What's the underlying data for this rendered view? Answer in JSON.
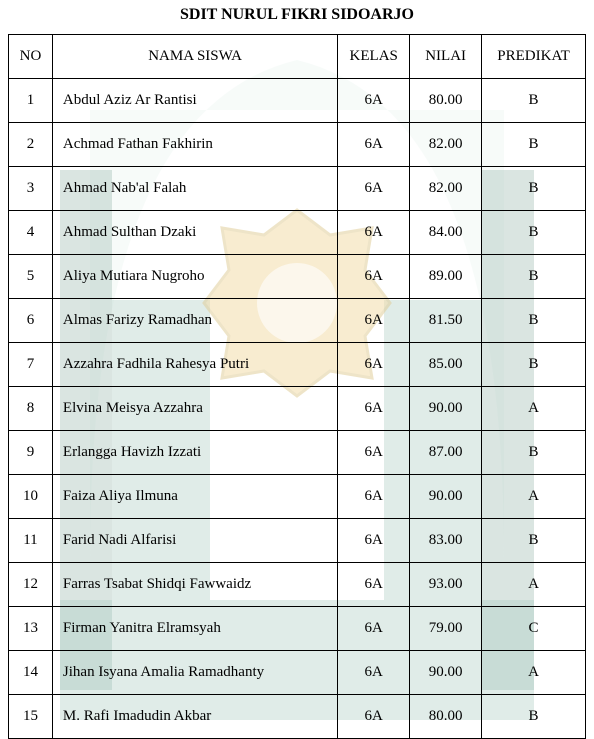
{
  "title": "SDIT NURUL FIKRI SIDOARJO",
  "watermark": {
    "dome_fill": "#d8eae2",
    "body_fill": "#5e9e8a",
    "body_fill_dark": "#3f7a68",
    "seal_fill": "#e9c266",
    "seal_stroke": "#c9a84a"
  },
  "table": {
    "columns": [
      "NO",
      "NAMA SISWA",
      "KELAS",
      "NILAI",
      "PREDIKAT"
    ],
    "rows": [
      {
        "no": "1",
        "name": "Abdul Aziz Ar Rantisi",
        "kelas": "6A",
        "nilai": "80.00",
        "predikat": "B"
      },
      {
        "no": "2",
        "name": "Achmad Fathan Fakhirin",
        "kelas": "6A",
        "nilai": "82.00",
        "predikat": "B"
      },
      {
        "no": "3",
        "name": "Ahmad Nab'al Falah",
        "kelas": "6A",
        "nilai": "82.00",
        "predikat": "B"
      },
      {
        "no": "4",
        "name": "Ahmad Sulthan Dzaki",
        "kelas": "6A",
        "nilai": "84.00",
        "predikat": "B"
      },
      {
        "no": "5",
        "name": "Aliya Mutiara Nugroho",
        "kelas": "6A",
        "nilai": "89.00",
        "predikat": "B"
      },
      {
        "no": "6",
        "name": "Almas Farizy Ramadhan",
        "kelas": "6A",
        "nilai": "81.50",
        "predikat": "B"
      },
      {
        "no": "7",
        "name": "Azzahra Fadhila Rahesya Putri",
        "kelas": "6A",
        "nilai": "85.00",
        "predikat": "B"
      },
      {
        "no": "8",
        "name": "Elvina Meisya Azzahra",
        "kelas": "6A",
        "nilai": "90.00",
        "predikat": "A"
      },
      {
        "no": "9",
        "name": "Erlangga Havizh Izzati",
        "kelas": "6A",
        "nilai": "87.00",
        "predikat": "B"
      },
      {
        "no": "10",
        "name": "Faiza Aliya Ilmuna",
        "kelas": "6A",
        "nilai": "90.00",
        "predikat": "A"
      },
      {
        "no": "11",
        "name": "Farid Nadi Alfarisi",
        "kelas": "6A",
        "nilai": "83.00",
        "predikat": "B"
      },
      {
        "no": "12",
        "name": "Farras Tsabat Shidqi Fawwaidz",
        "kelas": "6A",
        "nilai": "93.00",
        "predikat": "A"
      },
      {
        "no": "13",
        "name": "Firman Yanitra Elramsyah",
        "kelas": "6A",
        "nilai": "79.00",
        "predikat": "C"
      },
      {
        "no": "14",
        "name": "Jihan Isyana Amalia Ramadhanty",
        "kelas": "6A",
        "nilai": "90.00",
        "predikat": "A"
      },
      {
        "no": "15",
        "name": "M. Rafi Imadudin Akbar",
        "kelas": "6A",
        "nilai": "80.00",
        "predikat": "B"
      }
    ]
  }
}
